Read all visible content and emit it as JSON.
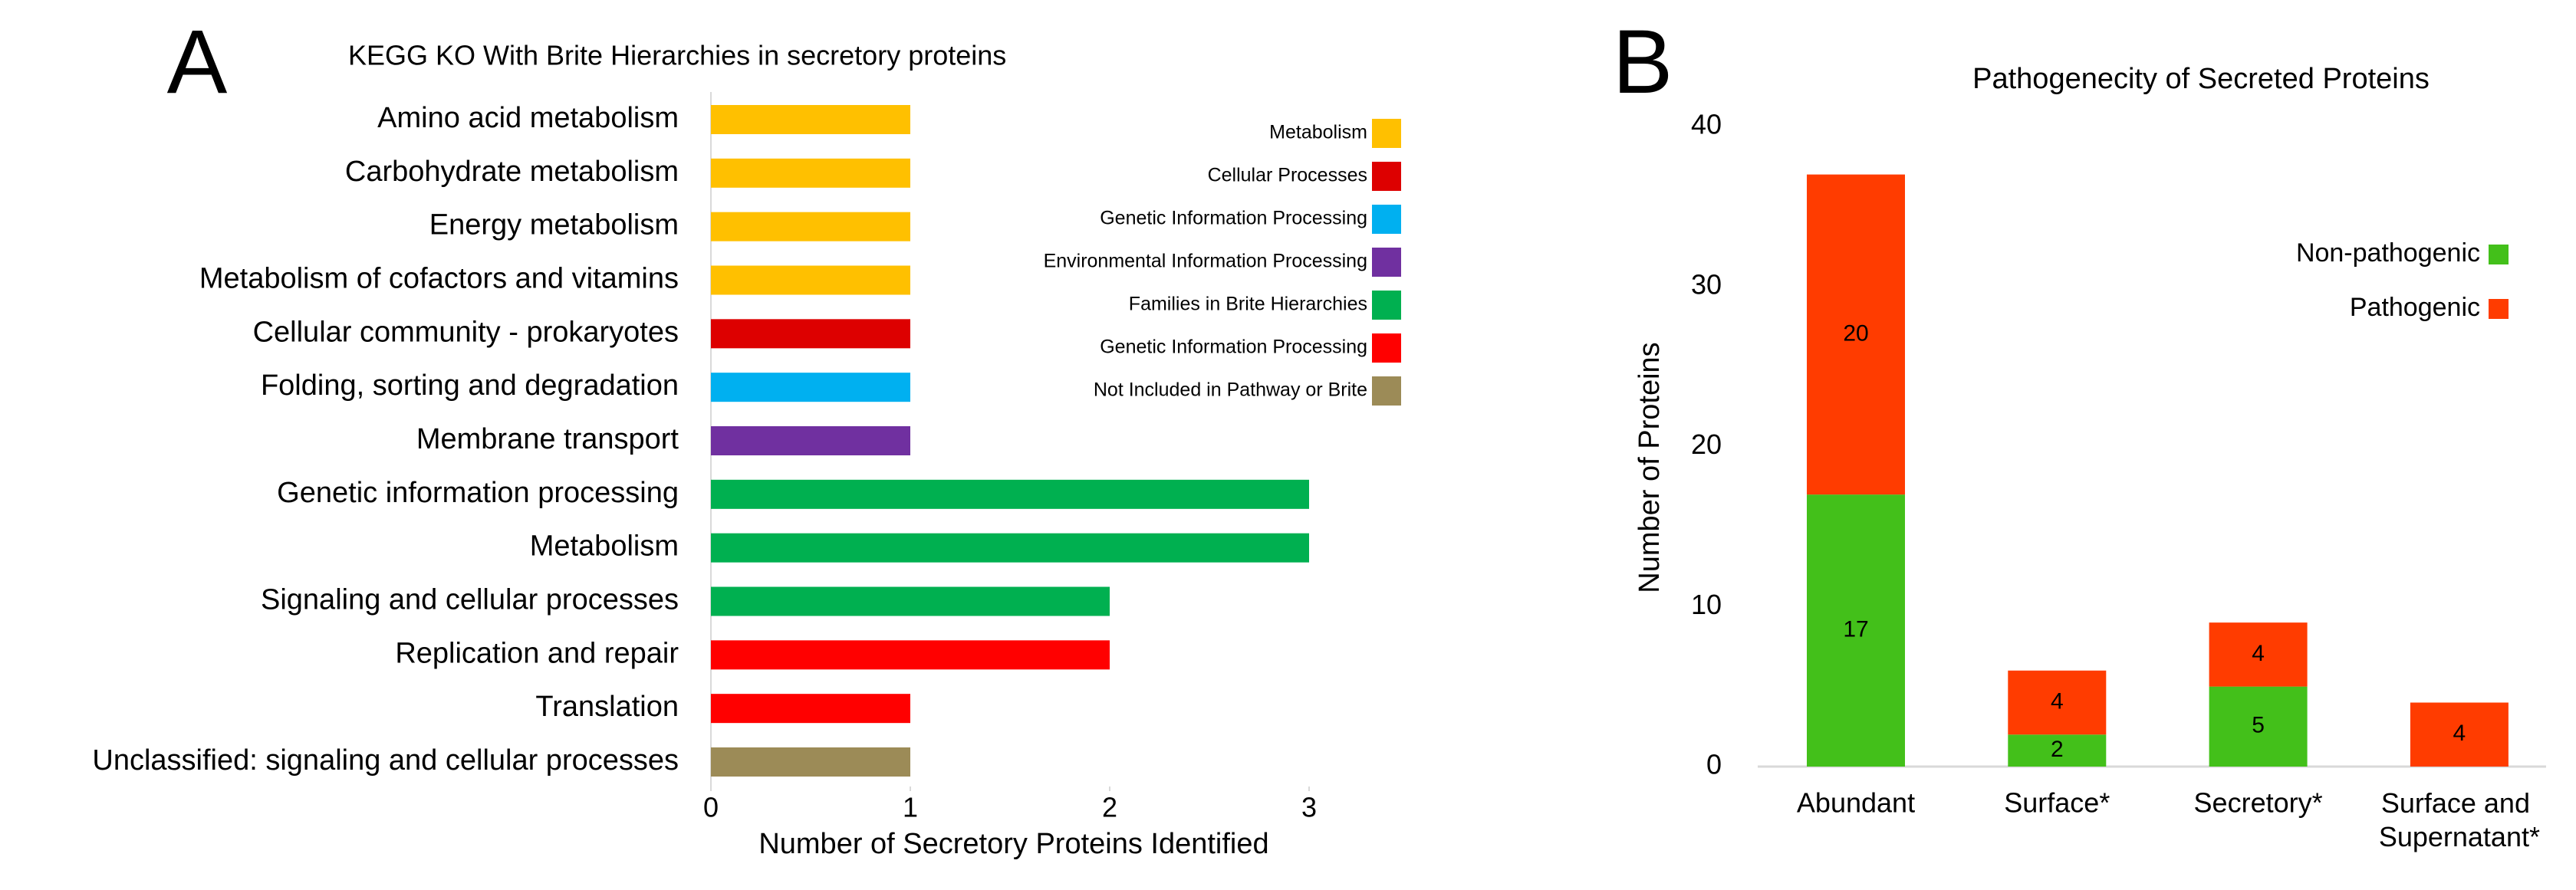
{
  "chart_data": [
    {
      "type": "barh",
      "panel": "A",
      "title": "KEGG KO With Brite Hierarchies in secretory proteins",
      "xlabel": "Number of Secretory Proteins Identified",
      "categories": [
        "Amino acid metabolism",
        "Carbohydrate metabolism",
        "Energy metabolism",
        "Metabolism of cofactors and vitamins",
        "Cellular community - prokaryotes",
        "Folding, sorting and degradation",
        "Membrane transport",
        "Genetic information processing",
        "Metabolism",
        "Signaling and cellular processes",
        "Replication and repair",
        "Translation",
        "Unclassified: signaling and cellular processes"
      ],
      "values": [
        1,
        1,
        1,
        1,
        1,
        1,
        1,
        3,
        3,
        2,
        2,
        1,
        1
      ],
      "colors": [
        "#ffc000",
        "#ffc000",
        "#ffc000",
        "#ffc000",
        "#dd0000",
        "#00b0f0",
        "#7030a0",
        "#00b050",
        "#00b050",
        "#00b050",
        "#ff0000",
        "#ff0000",
        "#9c8b57"
      ],
      "legend": [
        {
          "name": "Metabolism",
          "color": "#ffc000"
        },
        {
          "name": "Cellular Processes",
          "color": "#dd0000"
        },
        {
          "name": "Genetic Information Processing",
          "color": "#00b0f0"
        },
        {
          "name": "Environmental Information Processing",
          "color": "#7030a0"
        },
        {
          "name": "Families in Brite Hierarchies",
          "color": "#00b050"
        },
        {
          "name": "Genetic Information Processing",
          "color": "#ff0000"
        },
        {
          "name": "Not Included in Pathway or Brite",
          "color": "#9c8b57"
        }
      ],
      "xlim": [
        0,
        3
      ],
      "xticks": [
        0,
        1,
        2,
        3
      ]
    },
    {
      "type": "stacked_bar",
      "panel": "B",
      "title": "Pathogenecity of Secreted Proteins",
      "ylabel": "Number of Proteins",
      "categories": [
        "Abundant",
        "Surface*",
        "Secretory*",
        "Surface and Supernatant*"
      ],
      "series": [
        {
          "name": "Non-pathogenic",
          "color": "#43c01a",
          "values": [
            17,
            2,
            5,
            null
          ]
        },
        {
          "name": "Pathogenic",
          "color": "#ff3c00",
          "values": [
            20,
            4,
            4,
            4
          ]
        }
      ],
      "ylim": [
        0,
        40
      ],
      "yticks": [
        0,
        10,
        20,
        30,
        40
      ]
    }
  ]
}
